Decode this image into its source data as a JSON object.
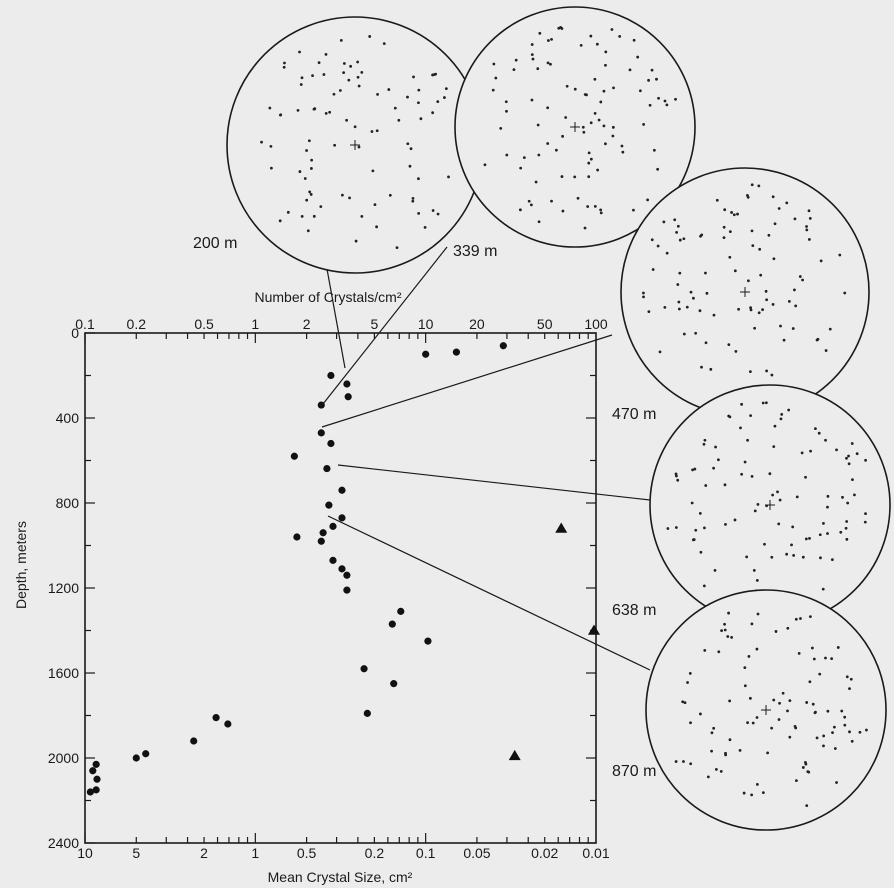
{
  "chart_data": {
    "type": "scatter",
    "title": "",
    "xlabel": "Mean Crystal Size, cm²",
    "ylabel": "Depth, meters",
    "top_axis_label": "Number of Crystals/cm²",
    "x_scale": "log (mean crystal size decreases to the right)",
    "xlim_mean_size_cm2": [
      10,
      0.01
    ],
    "top_axis_range_crystals_per_cm2": [
      0.1,
      100
    ],
    "ylim_depth_m": [
      0,
      2400
    ],
    "y_direction": "depth increases downward",
    "grid": false,
    "bottom_tick_labels": [
      "10",
      "5",
      "2",
      "1",
      "0.5",
      "0.2",
      "0.1",
      "0.05",
      "0.02",
      "0.01"
    ],
    "bottom_tick_values": [
      10,
      5,
      2,
      1,
      0.5,
      0.2,
      0.1,
      0.05,
      0.02,
      0.01
    ],
    "top_tick_labels": [
      "0.1",
      "0.2",
      "0.5",
      "1",
      "2",
      "5",
      "10",
      "20",
      "50",
      "100"
    ],
    "top_tick_values": [
      0.1,
      0.2,
      0.5,
      1,
      2,
      5,
      10,
      20,
      50,
      100
    ],
    "y_tick_labels": [
      "0",
      "400",
      "800",
      "1200",
      "1600",
      "2000",
      "2400"
    ],
    "y_tick_values": [
      0,
      400,
      800,
      1200,
      1600,
      2000,
      2400
    ],
    "series": [
      {
        "marker": "circle",
        "points": [
          {
            "x": 0.1,
            "y": 100
          },
          {
            "x": 0.066,
            "y": 90
          },
          {
            "x": 0.035,
            "y": 60
          },
          {
            "x": 0.36,
            "y": 200
          },
          {
            "x": 0.29,
            "y": 240
          },
          {
            "x": 0.285,
            "y": 300
          },
          {
            "x": 0.41,
            "y": 339
          },
          {
            "x": 0.41,
            "y": 470
          },
          {
            "x": 0.36,
            "y": 520
          },
          {
            "x": 0.59,
            "y": 580
          },
          {
            "x": 0.38,
            "y": 638
          },
          {
            "x": 0.31,
            "y": 740
          },
          {
            "x": 0.37,
            "y": 810
          },
          {
            "x": 0.31,
            "y": 870
          },
          {
            "x": 0.35,
            "y": 910
          },
          {
            "x": 0.57,
            "y": 960
          },
          {
            "x": 0.41,
            "y": 980
          },
          {
            "x": 0.4,
            "y": 940
          },
          {
            "x": 0.35,
            "y": 1070
          },
          {
            "x": 0.31,
            "y": 1110
          },
          {
            "x": 0.29,
            "y": 1140
          },
          {
            "x": 0.29,
            "y": 1210
          },
          {
            "x": 0.14,
            "y": 1310
          },
          {
            "x": 0.157,
            "y": 1370
          },
          {
            "x": 0.097,
            "y": 1450
          },
          {
            "x": 0.23,
            "y": 1580
          },
          {
            "x": 0.154,
            "y": 1650
          },
          {
            "x": 0.22,
            "y": 1790
          },
          {
            "x": 1.7,
            "y": 1810
          },
          {
            "x": 1.45,
            "y": 1840
          },
          {
            "x": 2.3,
            "y": 1920
          },
          {
            "x": 5.0,
            "y": 2000
          },
          {
            "x": 4.4,
            "y": 1980
          },
          {
            "x": 9.0,
            "y": 2060
          },
          {
            "x": 8.5,
            "y": 2100
          },
          {
            "x": 8.6,
            "y": 2030
          },
          {
            "x": 8.6,
            "y": 2150
          },
          {
            "x": 9.3,
            "y": 2160
          }
        ]
      },
      {
        "marker": "triangle",
        "points": [
          {
            "x": 0.016,
            "y": 920
          },
          {
            "x": 0.01,
            "y": 1400
          },
          {
            "x": 0.03,
            "y": 1990
          }
        ]
      }
    ],
    "fabric_diagrams": [
      {
        "depth_label": "200 m",
        "depth_m": 200
      },
      {
        "depth_label": "339 m",
        "depth_m": 339
      },
      {
        "depth_label": "470 m",
        "depth_m": 470
      },
      {
        "depth_label": "638 m",
        "depth_m": 638
      },
      {
        "depth_label": "870 m",
        "depth_m": 870
      }
    ]
  }
}
